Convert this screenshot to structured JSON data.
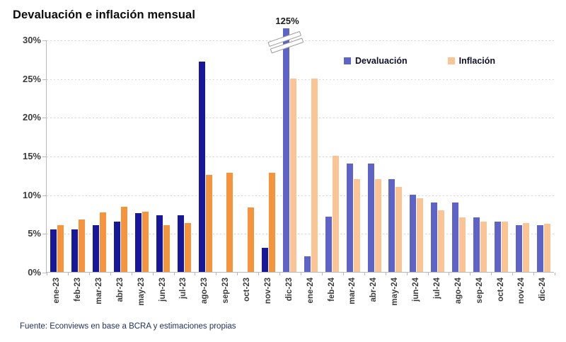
{
  "title": "Devaluación e inflación mensual",
  "source_note": "Fuente: Econviews en base a BCRA y estimaciones propias",
  "legend": {
    "items": [
      {
        "label": "Devaluación"
      },
      {
        "label": "Inflación"
      }
    ]
  },
  "colors": {
    "devaluacion_actual": "#17179A",
    "devaluacion_forecast": "#5E63C7",
    "inflacion_actual": "#F6943D",
    "inflacion_forecast": "#FAC495",
    "gridline": "#d6d6d6",
    "axis": "#b9b9b9"
  },
  "chart_data": {
    "type": "bar",
    "title": "Devaluación e inflación mensual",
    "xlabel": "",
    "ylabel": "",
    "ylim": [
      0,
      30
    ],
    "ytick_values": [
      0,
      5,
      10,
      15,
      20,
      25,
      30
    ],
    "ytick_labels": [
      "0%",
      "5%",
      "10%",
      "15%",
      "20%",
      "25%",
      "30%"
    ],
    "grid": "horizontal-dashed",
    "legend_position": "top-right-inside",
    "categories": [
      "ene-23",
      "feb-23",
      "mar-23",
      "abr-23",
      "may-23",
      "jun-23",
      "jul-23",
      "ago-23",
      "sep-23",
      "oct-23",
      "nov-23",
      "dic-23",
      "ene-24",
      "feb-24",
      "mar-24",
      "abr-24",
      "may-24",
      "jun-24",
      "jul-24",
      "ago-24",
      "sep-24",
      "oct-24",
      "nov-24",
      "dic-24"
    ],
    "forecast_start_index": 11,
    "series": [
      {
        "name": "Devaluación",
        "values": [
          5.5,
          5.5,
          6.0,
          6.5,
          7.6,
          7.3,
          7.3,
          27.2,
          0,
          0,
          3.1,
          125,
          2.0,
          7.1,
          14.0,
          14.0,
          12.0,
          10.0,
          9.0,
          9.0,
          7.0,
          6.5,
          6.0,
          6.0
        ]
      },
      {
        "name": "Inflación",
        "values": [
          6.0,
          6.8,
          7.7,
          8.4,
          7.8,
          6.0,
          6.3,
          12.5,
          12.8,
          8.3,
          12.8,
          25.0,
          25.0,
          15.0,
          12.0,
          12.0,
          11.0,
          9.5,
          8.0,
          7.0,
          6.5,
          6.5,
          6.3,
          6.2
        ]
      }
    ],
    "broken_bar": {
      "category": "dic-23",
      "series": "Devaluación",
      "true_value": 125,
      "annotation": "125%"
    }
  }
}
